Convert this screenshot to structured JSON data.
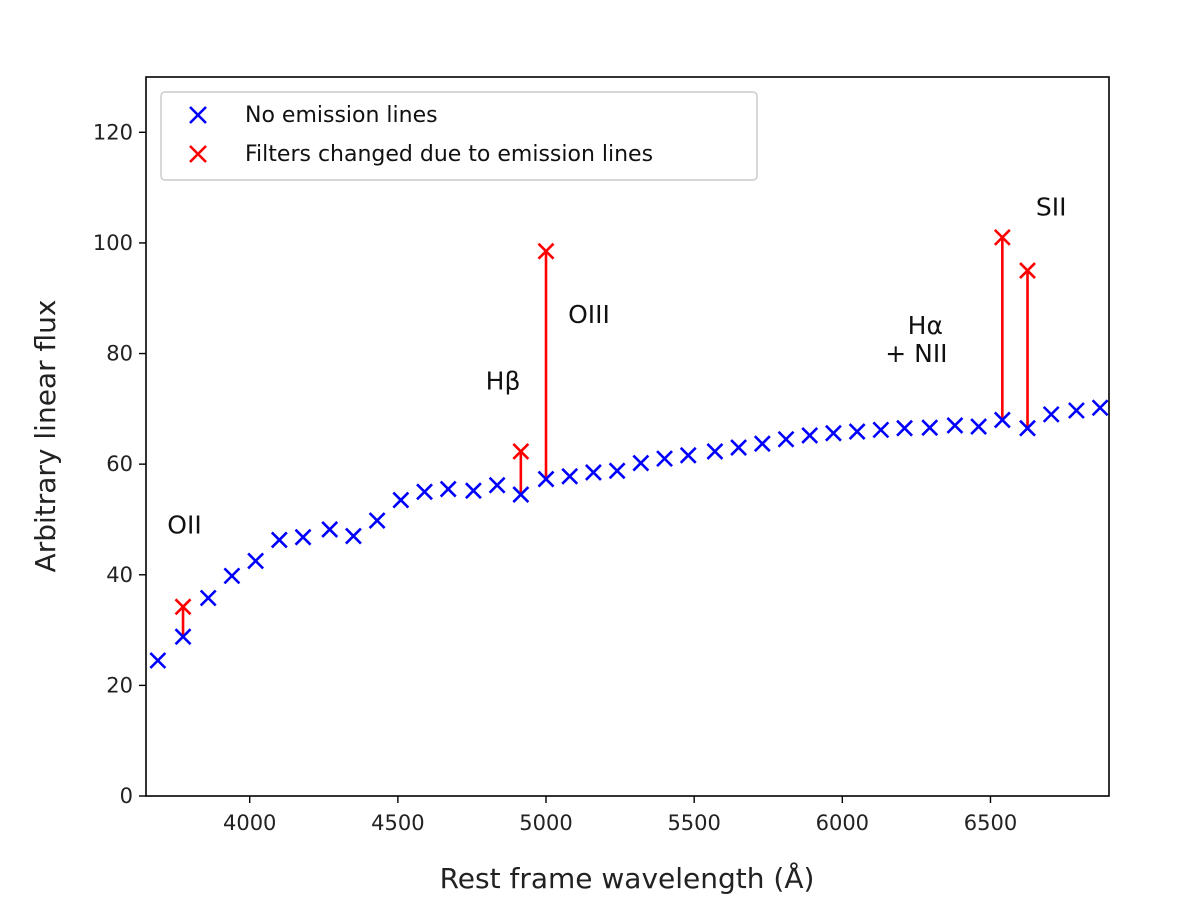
{
  "chart_data": {
    "type": "scatter",
    "xlabel": "Rest frame wavelength (Å)",
    "ylabel": "Arbitrary linear flux",
    "xlim": [
      3650,
      6900
    ],
    "ylim": [
      0,
      130
    ],
    "x_ticks": [
      4000,
      4500,
      5000,
      5500,
      6000,
      6500
    ],
    "y_ticks": [
      0,
      20,
      40,
      60,
      80,
      100,
      120
    ],
    "grid": false,
    "legend_position": "top-left",
    "series": [
      {
        "name": "No emission lines",
        "color": "#0000ff",
        "marker": "x",
        "points": [
          [
            3690,
            24.5
          ],
          [
            3775,
            28.8
          ],
          [
            3860,
            35.8
          ],
          [
            3940,
            39.8
          ],
          [
            4020,
            42.5
          ],
          [
            4100,
            46.3
          ],
          [
            4180,
            46.8
          ],
          [
            4270,
            48.2
          ],
          [
            4350,
            47.0
          ],
          [
            4430,
            49.8
          ],
          [
            4510,
            53.5
          ],
          [
            4590,
            55.0
          ],
          [
            4670,
            55.5
          ],
          [
            4755,
            55.2
          ],
          [
            4835,
            56.2
          ],
          [
            4915,
            54.5
          ],
          [
            5000,
            57.3
          ],
          [
            5080,
            57.8
          ],
          [
            5160,
            58.5
          ],
          [
            5240,
            58.8
          ],
          [
            5320,
            60.2
          ],
          [
            5400,
            61.0
          ],
          [
            5480,
            61.6
          ],
          [
            5570,
            62.3
          ],
          [
            5650,
            63.0
          ],
          [
            5730,
            63.7
          ],
          [
            5810,
            64.5
          ],
          [
            5890,
            65.2
          ],
          [
            5970,
            65.6
          ],
          [
            6050,
            65.9
          ],
          [
            6130,
            66.2
          ],
          [
            6210,
            66.5
          ],
          [
            6295,
            66.6
          ],
          [
            6380,
            67.0
          ],
          [
            6460,
            66.8
          ],
          [
            6540,
            68.0
          ],
          [
            6625,
            66.5
          ],
          [
            6705,
            69.0
          ],
          [
            6790,
            69.7
          ],
          [
            6870,
            70.2
          ]
        ]
      },
      {
        "name": "Filters changed due to emission lines",
        "color": "#ff0000",
        "marker": "x",
        "points": [
          [
            3775,
            34.2
          ],
          [
            4915,
            62.3
          ],
          [
            5000,
            98.5
          ],
          [
            6540,
            101.0
          ],
          [
            6625,
            95.0
          ]
        ]
      }
    ],
    "connectors": [
      {
        "x": 3775,
        "from": 28.8,
        "to": 34.2
      },
      {
        "x": 4915,
        "from": 54.5,
        "to": 62.3
      },
      {
        "x": 5000,
        "from": 57.3,
        "to": 98.5
      },
      {
        "x": 6540,
        "from": 68.0,
        "to": 101.0
      },
      {
        "x": 6625,
        "from": 66.5,
        "to": 95.0
      }
    ],
    "annotations": [
      {
        "text": "OII",
        "x": 3780,
        "y": 47.5,
        "anchor": "middle"
      },
      {
        "text": "Hβ",
        "x": 4855,
        "y": 73.5,
        "anchor": "middle"
      },
      {
        "text": "OIII",
        "x": 5145,
        "y": 85.5,
        "anchor": "middle"
      },
      {
        "text": "Hα",
        "x": 6280,
        "y": 83.5,
        "anchor": "middle"
      },
      {
        "text": "+ NII",
        "x": 6250,
        "y": 78.5,
        "anchor": "middle"
      },
      {
        "text": "SII",
        "x": 6705,
        "y": 105,
        "anchor": "middle"
      }
    ]
  }
}
